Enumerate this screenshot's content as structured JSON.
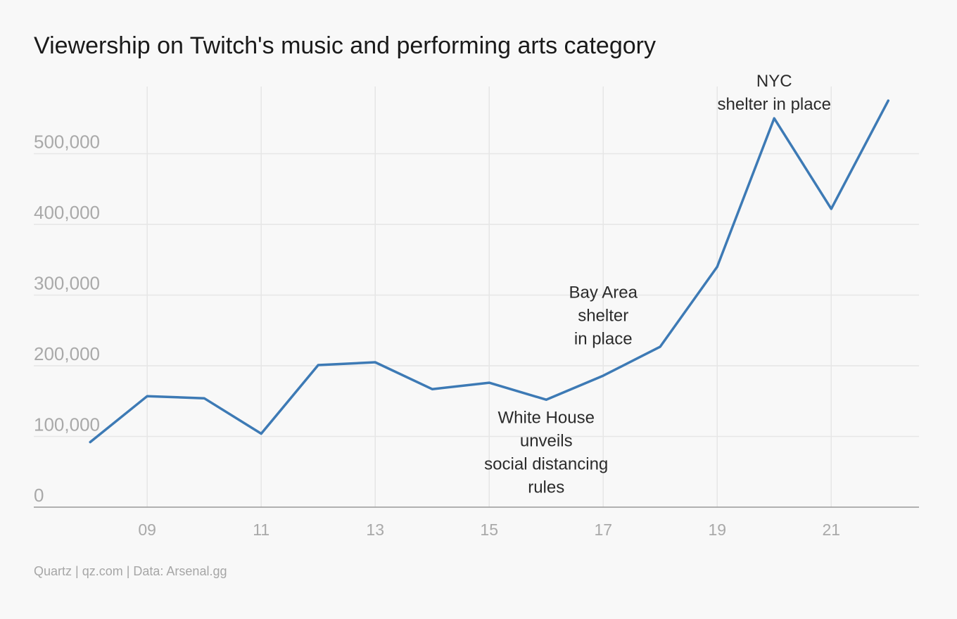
{
  "title": "Viewership on Twitch's music and performing arts category",
  "source": "Quartz | qz.com | Data: Arsenal.gg",
  "colors": {
    "line": "#3d7ab5",
    "grid": "#e6e6e6",
    "axis": "#999999",
    "tick_text": "#a9a9a9"
  },
  "chart_data": {
    "type": "line",
    "x_tick_labels": [
      "09",
      "11",
      "13",
      "15",
      "17",
      "19",
      "21"
    ],
    "x_tick_values": [
      9,
      11,
      13,
      15,
      17,
      19,
      21
    ],
    "y_tick_labels": [
      "0",
      "100,000",
      "200,000",
      "300,000",
      "400,000",
      "500,000"
    ],
    "y_tick_values": [
      0,
      100000,
      200000,
      300000,
      400000,
      500000
    ],
    "xlim": [
      7.01,
      22.54
    ],
    "ylim": [
      0,
      595000
    ],
    "grid": true,
    "series": [
      {
        "x": [
          8,
          9,
          10,
          11,
          12,
          13,
          14,
          15,
          16,
          17,
          18,
          19,
          20,
          21,
          22
        ],
        "values": [
          92000,
          157000,
          154000,
          104000,
          201000,
          205000,
          167000,
          176000,
          152000,
          186000,
          227000,
          340000,
          550000,
          422000,
          575000
        ]
      }
    ],
    "annotations": [
      {
        "lines": [
          "NYC",
          "shelter in place"
        ],
        "x": 20,
        "y": 595000
      },
      {
        "lines": [
          "Bay Area",
          "shelter",
          "in place"
        ],
        "x": 17,
        "y": 296000
      },
      {
        "lines": [
          "White House",
          "unveils",
          "social distancing",
          "rules"
        ],
        "x": 16,
        "y": 119000
      }
    ]
  }
}
